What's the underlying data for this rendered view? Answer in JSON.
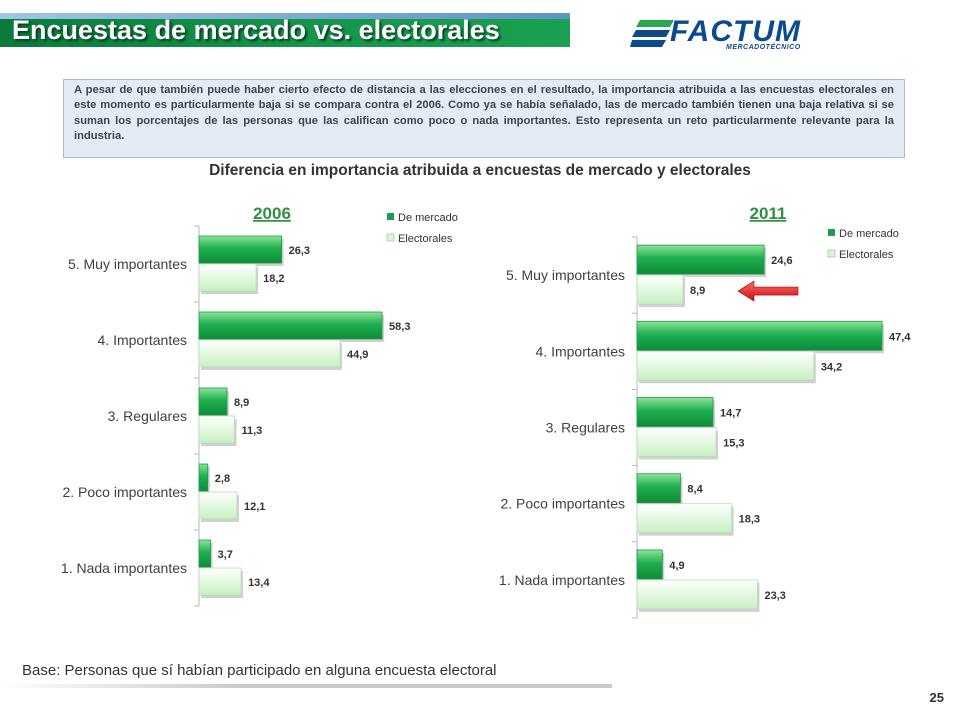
{
  "header": {
    "title": "Encuestas de mercado vs. electorales",
    "logo_text": "FACTUM",
    "logo_subtext": "MERCADOTÉCNICO"
  },
  "note": "A pesar de que también puede haber cierto efecto de distancia a las elecciones en el resultado, la importancia atribuida a las encuestas electorales en este momento es particularmente baja si se compara contra el 2006. Como ya se había señalado, las de mercado también tienen una baja relativa si se suman los porcentajes de las personas que las califican como poco o nada importantes. Esto representa un reto particularmente relevante para la industria.",
  "colors": {
    "market": "#1a9e4b",
    "electoral": "#d8f5d6",
    "year_label": "#2f8f44",
    "arrow": "#e02020",
    "accent_blue": "#0c4a8e"
  },
  "chart_data": {
    "type": "bar",
    "title": "Diferencia en importancia atribuida a encuestas de mercado y electorales",
    "panels": [
      {
        "title": "2006",
        "categories": [
          "5. Muy importantes",
          "4. Importantes",
          "3. Regulares",
          "2. Poco importantes",
          "1. Nada importantes"
        ],
        "series": [
          {
            "name": "De mercado",
            "values": [
              26.3,
              58.3,
              8.9,
              2.8,
              3.7
            ],
            "labels": [
              "26,3",
              "58,3",
              "8,9",
              "2,8",
              "3,7"
            ]
          },
          {
            "name": "Electorales",
            "values": [
              18.2,
              44.9,
              11.3,
              12.1,
              13.4
            ],
            "labels": [
              "18,2",
              "44,9",
              "11,3",
              "12,1",
              "13,4"
            ]
          }
        ],
        "legend": "top-right"
      },
      {
        "title": "2011",
        "categories": [
          "5. Muy importantes",
          "4. Importantes",
          "3. Regulares",
          "2. Poco importantes",
          "1. Nada importantes"
        ],
        "series": [
          {
            "name": "De mercado",
            "values": [
              24.6,
              47.4,
              14.7,
              8.4,
              4.9
            ],
            "labels": [
              "24,6",
              "47,4",
              "14,7",
              "8,4",
              "4,9"
            ]
          },
          {
            "name": "Electorales",
            "values": [
              8.9,
              34.2,
              15.3,
              18.3,
              23.3
            ],
            "labels": [
              "8,9",
              "34,2",
              "15,3",
              "18,3",
              "23,3"
            ]
          }
        ],
        "legend": "top-right",
        "highlight": {
          "category": "5. Muy importantes",
          "series": "Electorales",
          "marker": "red-arrow"
        }
      }
    ]
  },
  "footer": {
    "base_note": "Base: Personas que sí habían participado en alguna encuesta electoral",
    "page_number": "25"
  }
}
